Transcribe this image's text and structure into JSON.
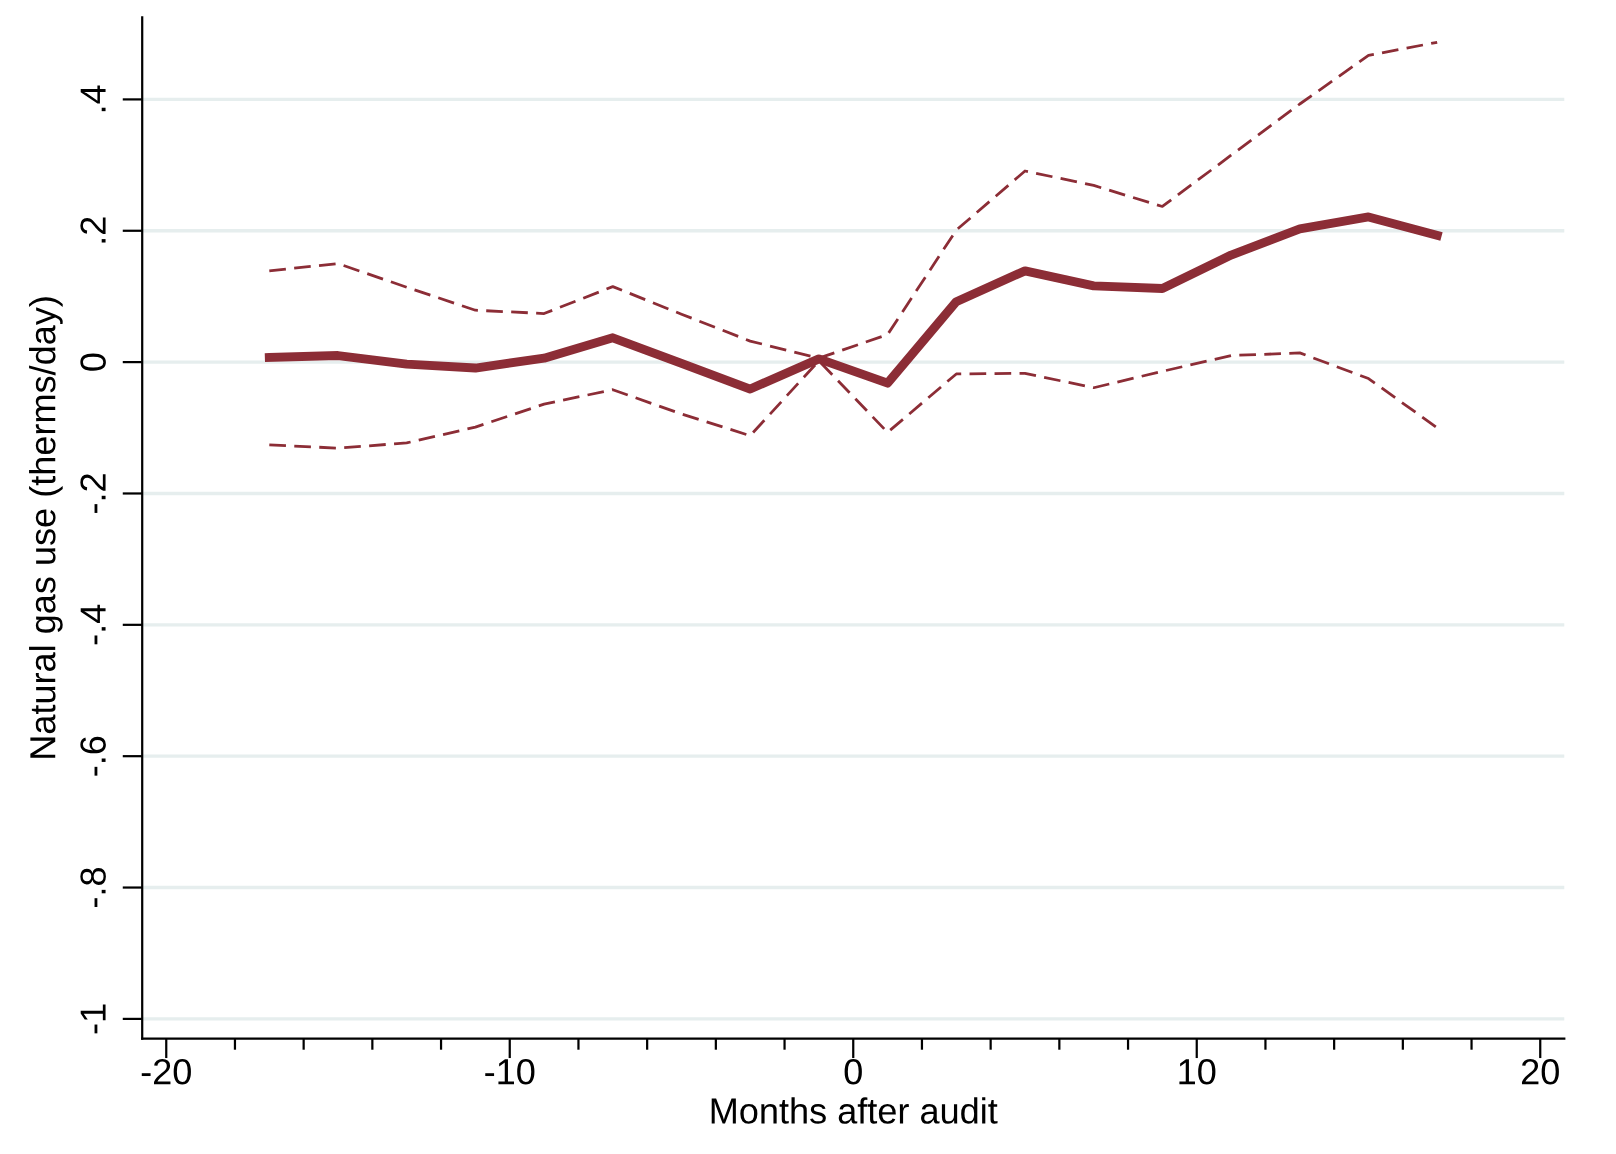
{
  "chart_data": {
    "type": "line",
    "xlabel": "Months after audit",
    "ylabel": "Natural gas use (therms/day)",
    "x": [
      -17,
      -15,
      -13,
      -11,
      -9,
      -7,
      -5,
      -3,
      -1,
      1,
      3,
      5,
      7,
      9,
      11,
      13,
      15,
      17
    ],
    "series": [
      {
        "color": "#8c2d36",
        "line_style": "solid",
        "values": [
          0.007,
          0.01,
          -0.003,
          -0.009,
          0.006,
          0.037,
          -0.002,
          -0.041,
          0.005,
          -0.032,
          0.092,
          0.139,
          0.116,
          0.112,
          0.163,
          0.203,
          0.221,
          0.193
        ]
      },
      {
        "color": "#8c2d36",
        "line_style": "dashed",
        "values": [
          0.139,
          0.15,
          0.114,
          0.079,
          0.074,
          0.115,
          0.073,
          0.032,
          0.006,
          0.042,
          0.201,
          0.291,
          0.269,
          0.237,
          0.315,
          0.393,
          0.467,
          0.487
        ]
      },
      {
        "color": "#8c2d36",
        "line_style": "dashed",
        "values": [
          -0.126,
          -0.131,
          -0.123,
          -0.099,
          -0.064,
          -0.042,
          -0.079,
          -0.112,
          0.002,
          -0.107,
          -0.018,
          -0.017,
          -0.039,
          -0.014,
          0.01,
          0.014,
          -0.025,
          -0.1
        ]
      }
    ],
    "xlim": [
      -20.7,
      20.7
    ],
    "xticks": [
      -20,
      {
        "value": -18,
        "label": null
      },
      {
        "value": -16,
        "label": null
      },
      {
        "value": -14,
        "label": null
      },
      {
        "value": -12,
        "label": null
      },
      -10,
      {
        "value": -8,
        "label": null
      },
      {
        "value": -6,
        "label": null
      },
      {
        "value": -4,
        "label": null
      },
      {
        "value": -2,
        "label": null
      },
      0,
      {
        "value": 2,
        "label": null
      },
      {
        "value": 4,
        "label": null
      },
      {
        "value": 6,
        "label": null
      },
      {
        "value": 8,
        "label": null
      },
      10,
      {
        "value": 12,
        "label": null
      },
      {
        "value": 14,
        "label": null
      },
      {
        "value": 16,
        "label": null
      },
      {
        "value": 18,
        "label": null
      },
      20
    ],
    "ylim": [
      -1.03,
      0.525
    ],
    "yticks": [
      {
        "value": -1,
        "label": "-1"
      },
      {
        "value": -0.8,
        "label": "-.8"
      },
      {
        "value": -0.6,
        "label": "-.6"
      },
      {
        "value": -0.4,
        "label": "-.4"
      },
      {
        "value": -0.2,
        "label": "-.2"
      },
      0,
      {
        "value": 0.2,
        "label": ".2"
      },
      {
        "value": 0.4,
        "label": ".4"
      }
    ],
    "grid": "y",
    "marker": "none"
  }
}
